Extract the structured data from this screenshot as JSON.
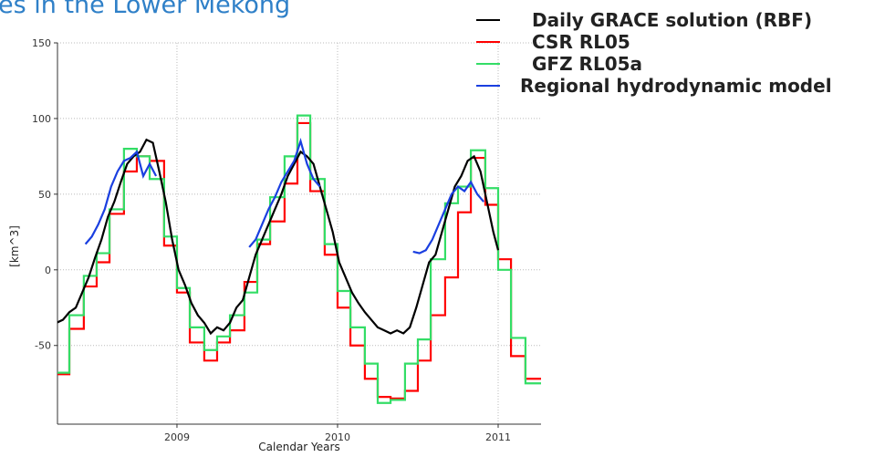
{
  "chart_data": {
    "type": "line",
    "title": "es in the Lower Mekong",
    "xlabel": "Calendar Years",
    "ylabel": "[km^3]",
    "xlim": [
      2008.256,
      2011.267
    ],
    "xticks": [
      2009,
      2010,
      2011
    ],
    "ylim": [
      -102,
      150
    ],
    "yticks": [
      -50,
      0,
      50,
      100,
      150
    ],
    "grid": true,
    "legend": "upper right",
    "series": [
      {
        "name": "Daily GRACE solution (RBF)",
        "color": "#000000",
        "drawstyle": "default",
        "x": [
          2008.25,
          2008.29,
          2008.33,
          2008.37,
          2008.41,
          2008.45,
          2008.49,
          2008.53,
          2008.57,
          2008.61,
          2008.65,
          2008.69,
          2008.73,
          2008.77,
          2008.81,
          2008.85,
          2008.89,
          2008.93,
          2008.97,
          2009.01,
          2009.05,
          2009.09,
          2009.13,
          2009.17,
          2009.21,
          2009.25,
          2009.29,
          2009.33,
          2009.37,
          2009.41,
          2009.45,
          2009.49,
          2009.53,
          2009.57,
          2009.61,
          2009.65,
          2009.69,
          2009.73,
          2009.77,
          2009.81,
          2009.85,
          2009.89,
          2009.93,
          2009.97,
          2010.01,
          2010.05,
          2010.09,
          2010.13,
          2010.17,
          2010.21,
          2010.25,
          2010.29,
          2010.33,
          2010.37,
          2010.41,
          2010.45,
          2010.49,
          2010.53,
          2010.57,
          2010.61,
          2010.65,
          2010.69,
          2010.73,
          2010.77,
          2010.81,
          2010.85,
          2010.89,
          2010.93,
          2010.97,
          2011.0
        ],
        "values": [
          -35,
          -33,
          -28,
          -25,
          -15,
          -5,
          8,
          20,
          35,
          45,
          58,
          70,
          75,
          78,
          86,
          84,
          65,
          45,
          20,
          0,
          -10,
          -22,
          -30,
          -35,
          -42,
          -38,
          -40,
          -35,
          -25,
          -20,
          -5,
          10,
          20,
          30,
          40,
          50,
          62,
          70,
          78,
          75,
          70,
          55,
          40,
          25,
          5,
          -5,
          -15,
          -22,
          -28,
          -33,
          -38,
          -40,
          -42,
          -40,
          -42,
          -38,
          -25,
          -10,
          5,
          10,
          25,
          40,
          55,
          62,
          72,
          75,
          65,
          45,
          25,
          13
        ]
      },
      {
        "name": "CSR RL05",
        "color": "#ff0000",
        "drawstyle": "steps-post",
        "x": [
          2008.25,
          2008.33,
          2008.42,
          2008.5,
          2008.58,
          2008.67,
          2008.75,
          2008.83,
          2008.92,
          2009.0,
          2009.08,
          2009.17,
          2009.25,
          2009.33,
          2009.42,
          2009.5,
          2009.58,
          2009.67,
          2009.75,
          2009.83,
          2009.92,
          2010.0,
          2010.08,
          2010.17,
          2010.25,
          2010.33,
          2010.42,
          2010.5,
          2010.58,
          2010.67,
          2010.75,
          2010.83,
          2010.92,
          2011.0,
          2011.08,
          2011.17
        ],
        "values": [
          -69,
          -39,
          -11,
          5,
          37,
          65,
          75,
          72,
          16,
          -15,
          -48,
          -60,
          -48,
          -40,
          -8,
          17,
          32,
          57,
          97,
          52,
          10,
          -25,
          -50,
          -72,
          -84,
          -85,
          -80,
          -60,
          -30,
          -5,
          38,
          74,
          43,
          7,
          -57,
          -72
        ]
      },
      {
        "name": "GFZ RL05a",
        "color": "#33dd66",
        "drawstyle": "steps-post",
        "x": [
          2008.25,
          2008.33,
          2008.42,
          2008.5,
          2008.58,
          2008.67,
          2008.75,
          2008.83,
          2008.92,
          2009.0,
          2009.08,
          2009.17,
          2009.25,
          2009.33,
          2009.42,
          2009.5,
          2009.58,
          2009.67,
          2009.75,
          2009.83,
          2009.92,
          2010.0,
          2010.08,
          2010.17,
          2010.25,
          2010.33,
          2010.42,
          2010.5,
          2010.58,
          2010.67,
          2010.75,
          2010.83,
          2010.92,
          2011.0,
          2011.08,
          2011.17
        ],
        "values": [
          -68,
          -30,
          -4,
          11,
          40,
          80,
          75,
          60,
          22,
          -12,
          -38,
          -53,
          -44,
          -30,
          -15,
          20,
          48,
          75,
          102,
          60,
          17,
          -14,
          -38,
          -62,
          -88,
          -86,
          -62,
          -46,
          7,
          44,
          55,
          79,
          54,
          0,
          -45,
          -75
        ]
      },
      {
        "name": "Regional hydrodynamic model",
        "color": "#1a3fe0",
        "drawstyle": "default",
        "x": [
          2008.43,
          2008.47,
          2008.51,
          2008.55,
          2008.59,
          2008.63,
          2008.67,
          2008.71,
          2008.75,
          2008.79,
          2008.83,
          2008.87,
          2009.1,
          2009.45,
          2009.49,
          2009.53,
          2009.57,
          2009.61,
          2009.65,
          2009.69,
          2009.73,
          2009.77,
          2009.81,
          2009.85,
          2009.89,
          2010.2,
          2010.47,
          2010.51,
          2010.55,
          2010.59,
          2010.63,
          2010.67,
          2010.71,
          2010.75,
          2010.79,
          2010.83,
          2010.87,
          2010.91
        ],
        "values": [
          17,
          22,
          30,
          40,
          55,
          65,
          72,
          74,
          78,
          62,
          70,
          62,
          null,
          15,
          20,
          30,
          40,
          48,
          58,
          65,
          72,
          85,
          70,
          60,
          55,
          null,
          12,
          11,
          13,
          20,
          30,
          40,
          50,
          55,
          52,
          58,
          50,
          45
        ]
      }
    ]
  }
}
